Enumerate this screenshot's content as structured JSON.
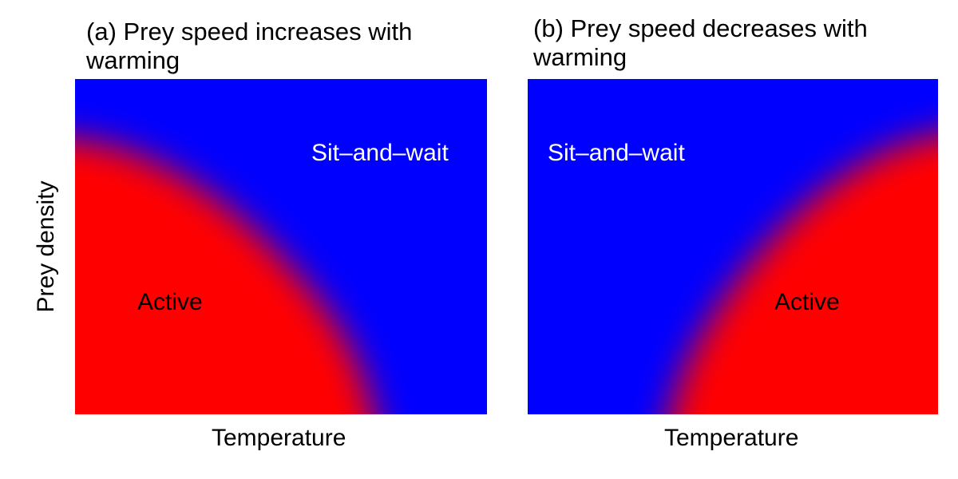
{
  "colors": {
    "active": "#ff0000",
    "sit_and_wait": "#0000ff",
    "active_label_text": "#000000",
    "sit_and_wait_label_text": "#ffffff"
  },
  "chart_data": [
    {
      "type": "heatmap",
      "title": "(a) Prey speed increases with warming",
      "xlabel": "Temperature",
      "ylabel": "Prey density",
      "ticks": "none",
      "legend": "none",
      "grid": false,
      "regions": [
        {
          "name": "Active",
          "color": "#ff0000",
          "label_color": "#000000"
        },
        {
          "name": "Sit–and–wait",
          "color": "#0000ff",
          "label_color": "#ffffff"
        }
      ],
      "boundary_direction": "sit-and-wait region grows toward high temperature and high prey density"
    },
    {
      "type": "heatmap",
      "title": "(b) Prey speed decreases with warming",
      "xlabel": "Temperature",
      "ylabel": "",
      "ticks": "none",
      "legend": "none",
      "grid": false,
      "regions": [
        {
          "name": "Sit–and–wait",
          "color": "#0000ff",
          "label_color": "#ffffff"
        },
        {
          "name": "Active",
          "color": "#ff0000",
          "label_color": "#000000"
        }
      ],
      "boundary_direction": "sit-and-wait region grows toward low temperature and high prey density"
    }
  ]
}
